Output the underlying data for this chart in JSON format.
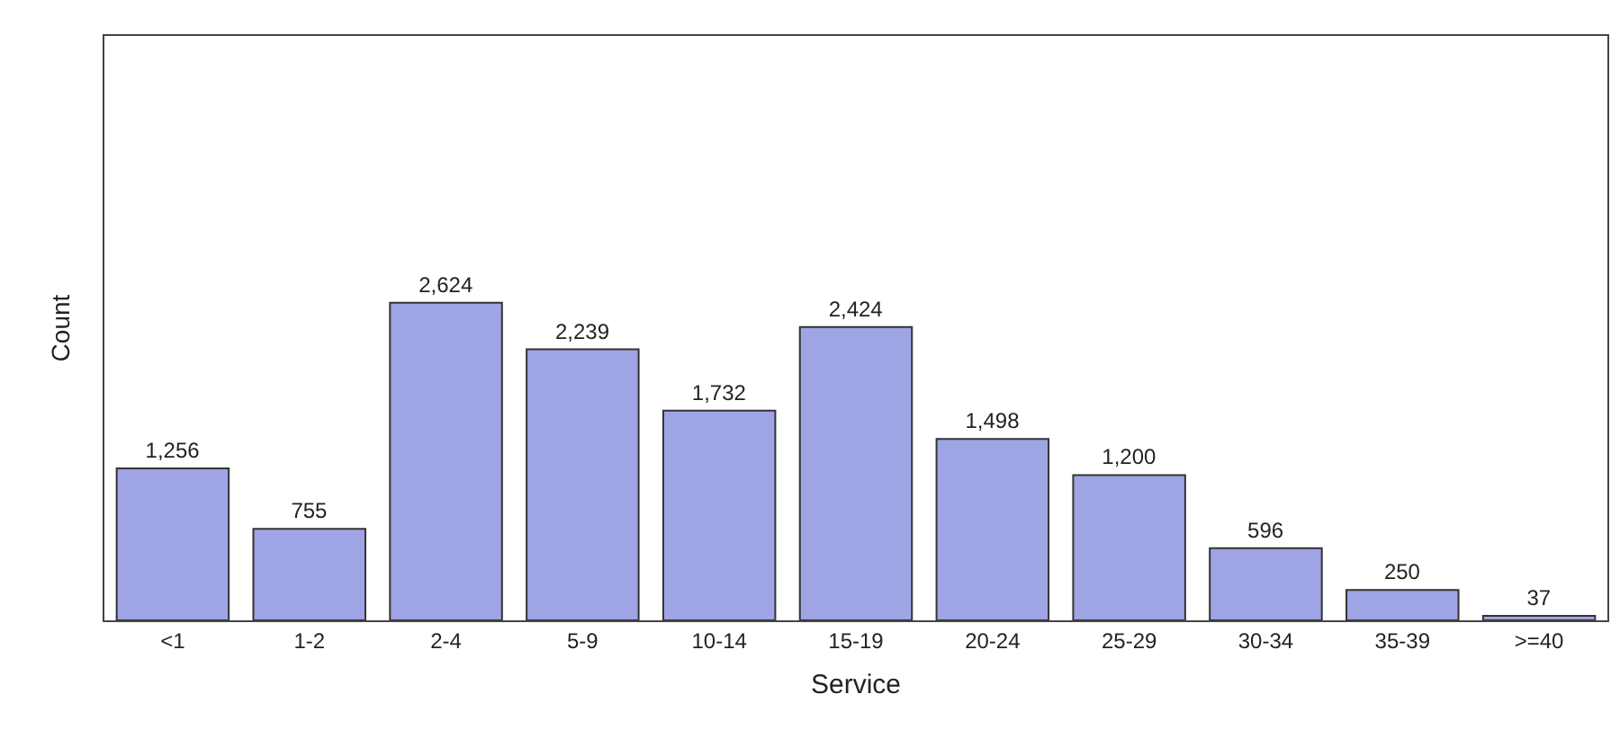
{
  "chart_data": {
    "type": "bar",
    "xlabel": "Service",
    "ylabel": "Count",
    "categories": [
      "<1",
      "1-2",
      "2-4",
      "5-9",
      "10-14",
      "15-19",
      "20-24",
      "25-29",
      "30-34",
      "35-39",
      ">=40"
    ],
    "values": [
      1256,
      755,
      2624,
      2239,
      1732,
      2424,
      1498,
      1200,
      596,
      250,
      37
    ],
    "value_labels": [
      "1,256",
      "755",
      "2,624",
      "2,239",
      "1,732",
      "2,424",
      "1,498",
      "1,200",
      "596",
      "250",
      "37"
    ],
    "color": "#9fa4e4",
    "grid": false
  }
}
